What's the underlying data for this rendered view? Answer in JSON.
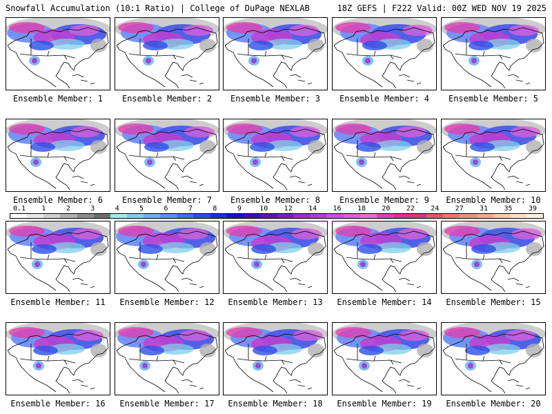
{
  "header": {
    "title_left": "Snowfall Accumulation (10:1 Ratio) | College of DuPage NEXLAB",
    "title_right": "18Z GEFS | F222 Valid: 00Z WED NOV 19 2025"
  },
  "members": [
    {
      "label": "Ensemble Member: 1"
    },
    {
      "label": "Ensemble Member: 2"
    },
    {
      "label": "Ensemble Member: 3"
    },
    {
      "label": "Ensemble Member: 4"
    },
    {
      "label": "Ensemble Member: 5"
    },
    {
      "label": "Ensemble Member: 6"
    },
    {
      "label": "Ensemble Member: 7"
    },
    {
      "label": "Ensemble Member: 8"
    },
    {
      "label": "Ensemble Member: 9"
    },
    {
      "label": "Ensemble Member: 10"
    },
    {
      "label": "Ensemble Member: 11"
    },
    {
      "label": "Ensemble Member: 12"
    },
    {
      "label": "Ensemble Member: 13"
    },
    {
      "label": "Ensemble Member: 14"
    },
    {
      "label": "Ensemble Member: 15"
    },
    {
      "label": "Ensemble Member: 16"
    },
    {
      "label": "Ensemble Member: 17"
    },
    {
      "label": "Ensemble Member: 18"
    },
    {
      "label": "Ensemble Member: 19"
    },
    {
      "label": "Ensemble Member: 20"
    }
  ],
  "colorbar": {
    "ticks": [
      "0.1",
      "1",
      "2",
      "3",
      "4",
      "5",
      "6",
      "7",
      "8",
      "9",
      "10",
      "12",
      "14",
      "16",
      "18",
      "20",
      "22",
      "24",
      "27",
      "31",
      "35",
      "39"
    ],
    "colors": [
      "#ffffff",
      "#e8e8e8",
      "#cfcfcf",
      "#b0b0b0",
      "#8c8c8c",
      "#6e6e6e",
      "#9fe8f0",
      "#7fcfe8",
      "#6fb0f0",
      "#5a90f5",
      "#3f6ff0",
      "#2a4fe8",
      "#1f2fd8",
      "#1a10c8",
      "#3a10b8",
      "#5a18b0",
      "#7a20b8",
      "#9a30c8",
      "#b040d0",
      "#c850d8",
      "#d860d8",
      "#e070d0",
      "#e040b0",
      "#e03090",
      "#d83878",
      "#e05868",
      "#e87870",
      "#f09080",
      "#f0a890",
      "#f8c8a8",
      "#ffe0c0",
      "#fff0dc"
    ]
  }
}
